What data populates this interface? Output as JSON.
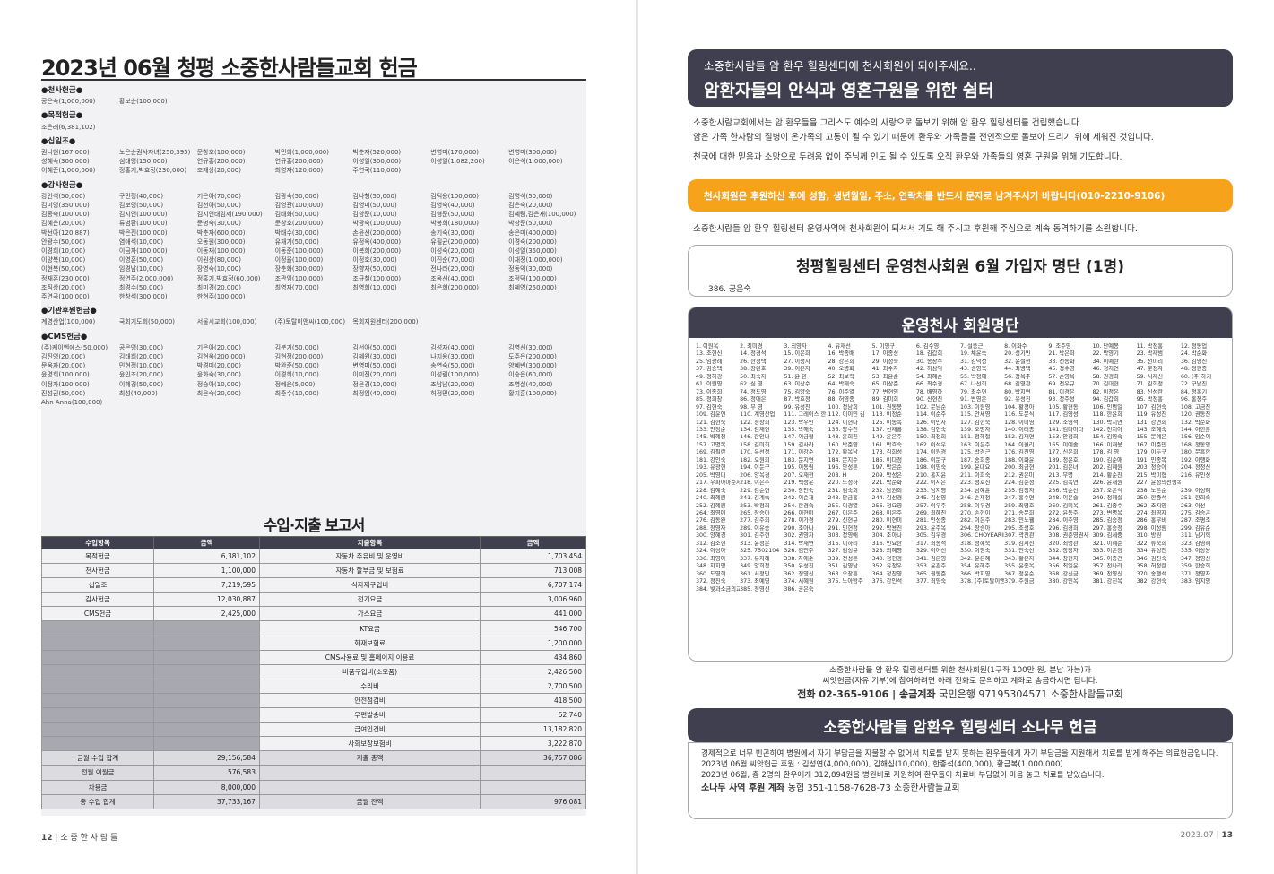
{
  "left": {
    "title": "2023년 06월 청평 소중한사람들교회 헌금",
    "sections": [
      {
        "heading": "●천사헌금●",
        "rows": [
          [
            "공은숙(1,000,000)",
            "황보순(100,000)",
            "",
            "",
            "",
            "",
            ""
          ]
        ]
      },
      {
        "heading": "●목적헌금●",
        "rows": [
          [
            "조은래(6,381,102)",
            "",
            "",
            "",
            "",
            "",
            ""
          ]
        ]
      },
      {
        "heading": "●십일조●",
        "rows": [
          [
            "권니현(167,000)",
            "노은순권사자녀(250,395)",
            "문창호(100,000)",
            "박민희(1,000,000)",
            "박춘자(520,000)",
            "변영미(170,000)",
            "변영미(300,000)"
          ],
          [
            "성혜숙(300,000)",
            "심태영(150,000)",
            "연규홍(200,000)",
            "연규홍(200,000)",
            "이성일(300,000)",
            "이성일(1,082,200)",
            "이은석(1,000,000)"
          ],
          [
            "이혜준(1,000,000)",
            "정홍기,박효정(230,000)",
            "조재상(20,000)",
            "최영자(120,000)",
            "주연국(110,000)",
            "",
            ""
          ]
        ]
      },
      {
        "heading": "●감사헌금●",
        "rows": [
          [
            "강인석(50,000)",
            "구민정(40,000)",
            "기은아(70,000)",
            "김광숙(50,000)",
            "김나형(50,000)",
            "김덕용(100,000)",
            "김명석(50,000)"
          ],
          [
            "김미영(350,000)",
            "김보영(50,000)",
            "김선아(50,000)",
            "김영관(100,000)",
            "김영미(50,000)",
            "김영숙(40,000)",
            "김은숙(20,000)"
          ],
          [
            "김종숙(100,000)",
            "김지연(100,000)",
            "김지연태임제(190,000)",
            "김태화(50,000)",
            "김향준(10,000)",
            "김형준(50,000)",
            "김혜림,김은재(100,000)"
          ],
          [
            "김혜은(20,000)",
            "류범환(100,000)",
            "문병숙(30,000)",
            "문창호(200,000)",
            "박광숙(100,000)",
            "박봉희(180,000)",
            "박상준(50,000)"
          ],
          [
            "박선아(120,887)",
            "박은진(100,000)",
            "박춘자(600,000)",
            "박태수(30,000)",
            "손윤선(200,000)",
            "송기숙(30,000)",
            "송은미(400,000)"
          ],
          [
            "안광수(50,000)",
            "염애석(10,000)",
            "오동원(300,000)",
            "유재기(50,000)",
            "유정옥(400,000)",
            "유필균(200,000)",
            "이경숙(200,000)"
          ],
          [
            "이경희(10,000)",
            "이금자(100,000)",
            "이동재(100,000)",
            "이동준(100,000)",
            "이복희(200,000)",
            "이성숙(20,000)",
            "이성일(350,000)"
          ],
          [
            "이양복(10,000)",
            "이영훈(50,000)",
            "이원상(80,000)",
            "이정율(100,000)",
            "이정호(30,000)",
            "이진순(70,000)",
            "이채정(1,000,000)"
          ],
          [
            "이현복(50,000)",
            "임경남(10,000)",
            "장영숙(10,000)",
            "장춘화(300,000)",
            "장향자(50,000)",
            "전나라(20,000)",
            "정동익(30,000)"
          ],
          [
            "정재훈(230,000)",
            "정연주(2,000,000)",
            "정홍기,박효정(60,000)",
            "조관임(100,000)",
            "조규철(100,000)",
            "조옥선(40,000)",
            "조정덕(100,000)"
          ],
          [
            "조직상(20,000)",
            "최경수(50,000)",
            "최미경(20,000)",
            "최영자(70,000)",
            "최영희(10,000)",
            "최은희(200,000)",
            "최혜영(250,000)"
          ],
          [
            "주연국(100,000)",
            "한창석(300,000)",
            "한현주(100,000)",
            "",
            "",
            "",
            ""
          ]
        ]
      },
      {
        "heading": "●기관후원헌금●",
        "rows": [
          [
            "계영산업(100,000)",
            "국회기도회(50,000)",
            "서울시교회(100,000)",
            "(주)토탈이앤씨(100,000)",
            "목회지원센터(200,000)",
            "",
            ""
          ]
        ]
      },
      {
        "heading": "●CMS헌금●",
        "rows": [
          [
            "(주)케이엔에스(50,000)",
            "공은영(30,000)",
            "기은아(20,000)",
            "김분기(50,000)",
            "김선아(50,000)",
            "김성자(40,000)",
            "김영선(30,000)"
          ],
          [
            "김진영(20,000)",
            "김태희(20,000)",
            "김현옥(200,000)",
            "김현정(200,000)",
            "김혜원(30,000)",
            "나지용(30,000)",
            "도주은(200,000)"
          ],
          [
            "문옥자(20,000)",
            "민현정(10,000)",
            "박경미(20,000)",
            "박완준(50,000)",
            "변영미(50,000)",
            "송연숙(50,000)",
            "양예빈(300,000)"
          ],
          [
            "윤명희(100,000)",
            "윤인조(20,000)",
            "윤화숙(30,000)",
            "이경희(10,000)",
            "이미진(20,000)",
            "이성림(100,000)",
            "이승은(60,000)"
          ],
          [
            "이정자(100,000)",
            "이혜경(50,000)",
            "정승아(10,000)",
            "정예은(5,000)",
            "정은경(10,000)",
            "조남남(20,000)",
            "조영실(40,000)"
          ],
          [
            "진성권(50,000)",
            "최성(40,000)",
            "최은숙(20,000)",
            "최준수(10,000)",
            "최정임(40,000)",
            "허정민(20,000)",
            "황지훈(100,000)"
          ],
          [
            "Ahn Anna(100,000)",
            "",
            "",
            "",
            "",
            "",
            ""
          ]
        ]
      }
    ],
    "io_title": "수입·지출 보고서",
    "io_headers": [
      "수입항목",
      "금액",
      "지출항목",
      "금액"
    ],
    "io_rows": [
      [
        "목적헌금",
        "6,381,102",
        "자동차 주유비 및 운영비",
        "1,703,454"
      ],
      [
        "천사헌금",
        "1,100,000",
        "자동차 할부금 및 보험료",
        "713,008"
      ],
      [
        "십일조",
        "7,219,595",
        "식자재구입비",
        "6,707,174"
      ],
      [
        "감사헌금",
        "12,030,887",
        "전기요금",
        "3,006,960"
      ],
      [
        "CMS헌금",
        "2,425,000",
        "가스요금",
        "441,000"
      ],
      [
        "",
        "",
        "KT요금",
        "546,700"
      ],
      [
        "",
        "",
        "화재보험료",
        "1,200,000"
      ],
      [
        "",
        "",
        "CMS사용료 및 홈페이지 이용료",
        "434,860"
      ],
      [
        "",
        "",
        "비품구입비(소모품)",
        "2,426,500"
      ],
      [
        "",
        "",
        "수리비",
        "2,700,500"
      ],
      [
        "",
        "",
        "안전점검비",
        "418,500"
      ],
      [
        "",
        "",
        "우편발송비",
        "52,740"
      ],
      [
        "",
        "",
        "급여인건비",
        "13,182,820"
      ],
      [
        "",
        "",
        "사회보장보험비",
        "3,222,870"
      ]
    ],
    "io_totals": [
      [
        "금월 수입 합계",
        "29,156,584",
        "지출 총액",
        "36,757,086"
      ],
      [
        "전월 이월금",
        "576,583",
        "",
        ""
      ],
      [
        "차용금",
        "8,000,000",
        "",
        ""
      ],
      [
        "총 수입 합계",
        "37,733,167",
        "금월 잔액",
        "976,081"
      ]
    ],
    "page_num": "12",
    "page_label": "소 중 한 사 람 들"
  },
  "right": {
    "header_sub": "소중한사람들 암 환우 힐링센터에 천사회원이 되어주세요..",
    "header_main": "암환자들의 안식과 영혼구원을 위한 쉼터",
    "intro1": "소중한사람교회에서는 암 환우들을 그리스도 예수의 사랑으로 돌보기 위해 암 환우 힐링센터를 건립했습니다.",
    "intro2": "암은 가족 한사람의 질병이 온가족의 고통이 될 수 있기 때문에 환우와 가족들을 전인적으로 돌보아 드리기 위해 세워진 것입니다.",
    "intro3": "천국에 대한 믿음과 소망으로 두려움 없이 주님께 인도 될 수 있도록 오직 환우와 가족들의 영혼 구원을 위해 기도합니다.",
    "orange": "천사회원은 후원하신 후에 성함, 생년월일, 주소, 연락처를 반드시 문자로 남겨주시기 바랍니다(010-2210-9106)",
    "after_orange": "소중한사람들 암 환우 힐링센터 운영사역에 천사회원이 되셔서 기도 해 주시고 후원해 주심으로 계속 동역하기를 소원합니다.",
    "new_title": "청평힐링센터 운영천사회원 6월 가입자 명단 (1명)",
    "new_names": "386. 공은숙",
    "members_title": "운영천사 회원명단",
    "members": [
      "1. 이원옥",
      "2. 최미경",
      "3. 최영자",
      "4. 유재선",
      "5. 이영구",
      "6. 김수영",
      "7. 설종근",
      "8. 이화수",
      "9. 조주영",
      "10. 단예봉",
      "11. 박정홍",
      "12. 정동업",
      "13. 조현신",
      "14. 정경석",
      "15. 이은희",
      "16. 박종배",
      "17. 이종성",
      "18. 김갑희",
      "19. 채윤숙",
      "20. 성기빈",
      "21. 박은희",
      "22. 박영기",
      "23. 박재범",
      "24. 박순화",
      "25. 임광례",
      "26. 한정택",
      "27. 이성자",
      "28. 강은희",
      "29. 이정숙",
      "30. 송창수",
      "31. 김덕성",
      "32. 윤철현",
      "33. 전동화",
      "34. 이예란",
      "35. 전미리",
      "36. 김영신",
      "37. 김승택",
      "38. 장완호",
      "39. 이은자",
      "40. 오병화",
      "41. 최수자",
      "42. 허삼익",
      "43. 송영욱",
      "44. 최병택",
      "45. 정수영",
      "46. 정지연",
      "47. 문정자",
      "48. 정한종",
      "49. 정해강",
      "50. 최숙자",
      "51. 윤 완",
      "52. 최보락",
      "53. 최윤순",
      "54. 최혜순",
      "55. 박정애",
      "56. 정옥주",
      "57. 손영옥",
      "58. 권경희",
      "59. 서재신",
      "60. (주)하기",
      "61. 이원영",
      "62. 심 영",
      "63. 이상수",
      "64. 박해숙",
      "65. 이상준",
      "66. 최수경",
      "67. 나선희",
      "68. 김영관",
      "69. 전우규",
      "70. 김대현",
      "71. 김희정",
      "72. 구남진",
      "73. 이종희",
      "74. 정도영",
      "75. 김양숙",
      "76. 이주열",
      "77. 변현영",
      "78. 배영하",
      "79. 최수연",
      "80. 박지연",
      "81. 이경은",
      "82. 이정은",
      "83. 신성란",
      "84. 정홍기",
      "85. 정희창",
      "86. 정애은",
      "87. 박효정",
      "88. 허영종",
      "89. 김미희",
      "90. 신현진",
      "91. 변영은",
      "92. 유성진",
      "93. 정주성",
      "94. 김갑희",
      "95. 박정홍",
      "96. 홍정주",
      "97. 김현숙",
      "98. 무 영",
      "99. 유성진",
      "100. 정남희",
      "101. 권동봉",
      "102. 문남순",
      "103. 이원영",
      "104. 황정아",
      "105. 황현동",
      "106. 인범일",
      "107. 김현숙",
      "108. 고금진",
      "109. 김윤연",
      "110. 계영산업",
      "111. 그레이스 한",
      "112. 이이민 김",
      "113. 이정순",
      "114. 이순주",
      "115. 안세영",
      "116. 도문식",
      "117. 김영성",
      "118. 한윤희",
      "119. 유성진",
      "120. 권동진",
      "121. 김현숙",
      "122. 정상희",
      "123. 박우민",
      "124. 이현나",
      "125. 이동옥",
      "126. 이민자",
      "127. 김현숙",
      "128. 이미영",
      "129. 조영석",
      "130. 박지연",
      "131. 강연희",
      "132. 박순화",
      "133. 안정순",
      "134. 김재연",
      "135. 박해숙",
      "136. 양수진",
      "137. 신재룡",
      "138. 김현숙",
      "139. 오명자",
      "140. 이태종",
      "141. 김다미다",
      "142. 전지아",
      "143. 조혜숙",
      "144. 이한훈",
      "145. 박혜정",
      "146. 한인나",
      "147. 이금형",
      "148. 윤희진",
      "149. 윤은주",
      "150. 최정희",
      "151. 정해철",
      "152. 김재연",
      "153. 안정희",
      "154. 김영숙",
      "155. 문예은",
      "156. 임순이",
      "157. 고명복",
      "158. 김미희",
      "159. 김사라",
      "160. 박준영",
      "161. 박호숙",
      "162. 이석우",
      "163. 이은주",
      "164. 이월리",
      "165. 이예솔",
      "166. 이재용",
      "167. 이준민",
      "168. 정동영",
      "169. 김필란",
      "170. 유선정",
      "171. 이강순",
      "172. 황옥남",
      "173. 김희성",
      "174. 이원경",
      "175. 박경근",
      "176. 김진영",
      "177. 신은희",
      "178. 김 영",
      "179. 이두구",
      "180. 문흥한",
      "181. 강인숙",
      "182. 오원희",
      "183. 문지연",
      "184. 문지수",
      "185. 이다정",
      "186. 이둔구",
      "187. 송희종",
      "188. 이화윤",
      "189. 정윤호",
      "190. 김순애",
      "191. 민종복",
      "192. 이행화",
      "193. 유광현",
      "194. 이둔구",
      "195. 이동림",
      "196. 안성훈",
      "197. 박은순",
      "198. 이영숙",
      "199. 윤대요",
      "200. 최금현",
      "201. 김은녀",
      "202. 김혜원",
      "203. 정승아",
      "204. 정정신",
      "205. 박영대",
      "206. 양옥경",
      "207. 오재현",
      "208. H",
      "209. 박성은",
      "210. 홍지윤",
      "211. 이희숙",
      "212. 권은미",
      "213. 무명",
      "214. 황순찬",
      "215. 박미형",
      "216. 유인성",
      "217. 우파아마순서",
      "218. 이은주",
      "219. 백성운",
      "220. 도정하",
      "221. 박순화",
      "222. 이시은",
      "223. 정호진",
      "224. 김순정",
      "225. 김옥연",
      "226. 윤재원",
      "227. 윤정의선행목표",
      "",
      "228. 김혜숙",
      "229. 김순헌",
      "230. 장인숙",
      "231. 김숙희",
      "232. 남원희",
      "233. 남지영",
      "234. 남혜윤",
      "235. 김정자",
      "236. 박순선",
      "237. 오은석",
      "238. 노은순",
      "239. 이성혜",
      "240. 최혜원",
      "241. 김계숙",
      "242. 이순재",
      "243. 안금홍",
      "244. 김선경",
      "245. 김선영",
      "246. 손재정",
      "247. 홍수연",
      "248. 이은슬",
      "249. 정혜실",
      "250. 한중석",
      "251. 한희숙",
      "252. 김혜원",
      "253. 박정희",
      "254. 한경숙",
      "255. 이경열",
      "256. 정요영",
      "257. 이우주",
      "258. 이우경",
      "259. 최명호",
      "260. 김미옥",
      "261. 김종수",
      "262. 조지영",
      "263. 이선",
      "264. 최영애",
      "265. 장승아",
      "266. 이현미",
      "267. 이은주",
      "268. 이은주",
      "269. 최혜진",
      "270. 손현이",
      "271. 송문희",
      "272. 윤동주",
      "273. 변명옥",
      "274. 최영자",
      "275. 김승곤",
      "276. 김동완",
      "277. 김주희",
      "278. 이가경",
      "279. 신현규",
      "280. 이현미",
      "281. 민성종",
      "282. 이은주",
      "283. 민노웰",
      "284. 이주영",
      "285. 김승정",
      "286. 홍부비",
      "287. 조평조",
      "288. 장영자",
      "289. 이유승",
      "290. 조아나",
      "291. 민현정",
      "292. 박용진",
      "293. 윤주옥",
      "294. 장승아",
      "295. 조성호",
      "296. 김경희",
      "297. 홍승정",
      "298. 이성림",
      "299. 김유순",
      "300. 양혜경",
      "301. 김주현",
      "302. 권영자",
      "303. 정영애",
      "304. 조아나",
      "305. 김우경",
      "306. CHOYEARIN",
      "307. 곽진관",
      "308. 권준영권사",
      "309. 김세중",
      "310. 방원",
      "311. 남기혁",
      "312. 김소현",
      "313. 윤정운",
      "314. 박재연",
      "315. 이하리",
      "316. 민요한",
      "317. 최종석",
      "318. 정혜숙",
      "319. 김시진",
      "320. 최명관",
      "321. 이혜순",
      "322. 류숙희",
      "323. 김영혜",
      "324. 이성아",
      "325. 7502104",
      "326. 김민주",
      "327. 김성규",
      "328. 최혜영",
      "329. 이어선",
      "330. 이영숙",
      "331. 민숙선",
      "332. 장창자",
      "333. 이은경",
      "334. 유성진",
      "335. 이상용",
      "336. 최영아",
      "337. 유지혜",
      "338. 차애순",
      "339. 전성훈",
      "340. 정현경",
      "341. 김은영",
      "342. 윤은혜",
      "343. 황은자",
      "344. 장현지",
      "345. 이종건",
      "346. 김진숙",
      "347. 정영신",
      "348. 차지영",
      "349. 양희정",
      "350. 유성진",
      "351. 김영남",
      "352. 유정우",
      "353. 윤관주",
      "354. 유해주",
      "355. 윤종옥",
      "356. 최일윤",
      "357. 전나라",
      "358. 허정란",
      "359. 한승희",
      "360. 도영희",
      "361. 서정민",
      "362. 정영신",
      "363. 오창훈",
      "364. 정찬영",
      "365. 권동준",
      "366. 박지영",
      "367. 정윤순",
      "368. 강신금",
      "369. 전영신",
      "370. 송행석",
      "371. 정영자",
      "372. 정진숙",
      "373. 최예영",
      "374. 서혜원",
      "375. 노아방주",
      "376. 강인석",
      "377. 최영숙",
      "378. (주)토탈이앤씨",
      "379. 주원금",
      "380. 강민옥",
      "381. 강진옥",
      "382. 강현숙",
      "383. 임지영",
      "384. 빛과소금의교회",
      "385. 정영신",
      "386. 공은숙",
      "",
      "",
      "",
      "",
      "",
      "",
      "",
      "",
      ""
    ],
    "info1": "소중한사람들 암 환우 힐링센터를 위한 천사회원(1구좌 100만 원, 분납 가능)과",
    "info2": "씨앗헌금(자유 기부)에 참여하려면 아래 전화로 문의하고 계좌로 송금하시면 됩니다.",
    "tel_label": "전화",
    "tel": "02-365-9106",
    "acct_label": "송금계좌",
    "acct": "국민은행 97195304571 소중한사람들교회",
    "sonamu_title": "소중한사람들 암환우 힐링센터 소나무 헌금",
    "sonamu_p1": "경제적으로 너무 빈곤하여 병원에서 자기 부담금을 지불할 수 없어서 치료를 받지 못하는 환우들에게 자기 부담금을 지원해서 치료를 받게 해주는 의료헌금입니다.",
    "sonamu_p2": "2023년 06월 씨앗헌금 후원 : 김성연(4,000,000), 김해심(10,000), 한종석(400,000), 황금복(1,000,000)",
    "sonamu_p3": "2023년 06월, 총 2명의 환우에게 312,894원을 병원비로 지원하여 환우들이 치료비 부담없이 마음 놓고 치료를 받았습니다.",
    "sonamu_acct_label": "소나무 사역 후원 계좌",
    "sonamu_acct": "농협 351-1158-7628-73 소중한사람들교회",
    "page_date": "2023.07",
    "page_num": "13"
  }
}
